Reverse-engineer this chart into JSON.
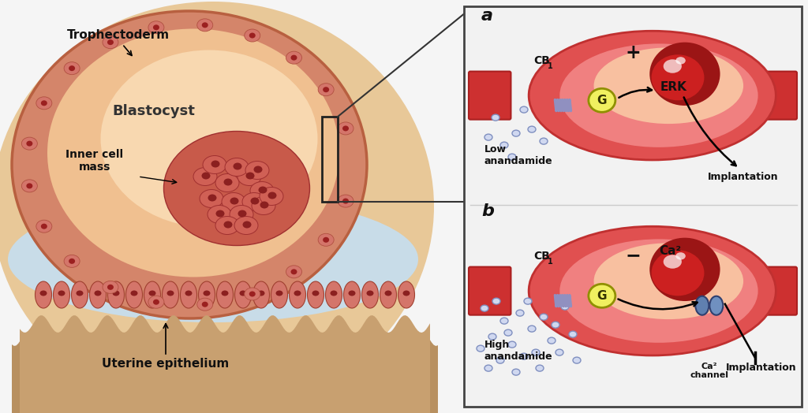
{
  "bg_color": "#f5f5f5",
  "border_color": "#222222",
  "left_panel": {
    "trophectoderm_label": "Trophectoderm",
    "blastocyst_label": "Blastocyst",
    "inner_cell_mass_label": "Inner cell\nmass",
    "uterine_label": "Uterine epithelium"
  },
  "right_panel": {
    "bg": "#f2f2f2",
    "border": "#444444",
    "vessel_color": "#cd3030",
    "vessel_border": "#aa2020",
    "embryo_outer": "#e05050",
    "embryo_inner": "#f08080",
    "embryo_lightest": "#f8c0a0",
    "nucleus_dark": "#9b1515",
    "nucleus_mid": "#cc2020",
    "g_label": "G",
    "g_color": "#f0f060",
    "g_border": "#909000",
    "coil_color": "#9090c0",
    "dot_color": "#d0d8f0",
    "dot_border": "#8090c0",
    "ca_channel_color1": "#6080b0",
    "ca_channel_color2": "#7090c0",
    "ca_channel_border": "#304070",
    "panel_a_label": "a",
    "panel_a_cb1": "CB",
    "panel_a_plus": "+",
    "panel_a_erk": "ERK",
    "panel_a_implantation": "Implantation",
    "panel_a_anandamide": "Low\nanandamide",
    "panel_b_label": "b",
    "panel_b_cb1": "CB",
    "panel_b_minus": "−",
    "panel_b_ca2": "Ca²",
    "panel_b_implantation": "Implantation",
    "panel_b_anandamide": "High\nanandamide",
    "panel_b_ca_channel": "Ca²\nchannel"
  },
  "connector_color": "#333333"
}
